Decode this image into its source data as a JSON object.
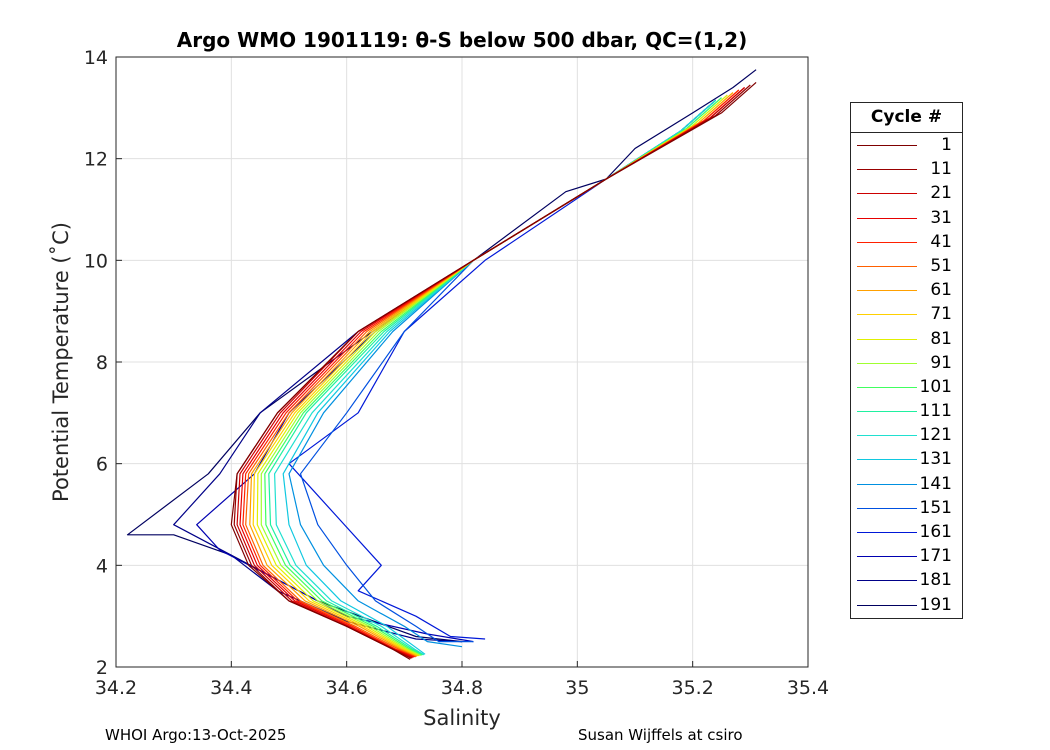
{
  "chart_data": {
    "type": "line",
    "title": "Argo WMO 1901119: θ-S below 500 dbar,  QC=(1,2)",
    "xlabel": "Salinity",
    "ylabel": "Potential Temperature (˚C)",
    "xlim": [
      34.2,
      35.4
    ],
    "ylim": [
      2,
      14
    ],
    "xticks": [
      "34.2",
      "34.4",
      "34.6",
      "34.8",
      "35",
      "35.2",
      "35.4"
    ],
    "yticks": [
      "2",
      "4",
      "6",
      "8",
      "10",
      "12",
      "14"
    ],
    "grid": true,
    "legend_title": "Cycle #",
    "legend_position": "right-outside",
    "series": [
      {
        "name": "1",
        "color": "#7f0000",
        "S": [
          35.31,
          35.25,
          35.05,
          34.82,
          34.62,
          34.48,
          34.41,
          34.4,
          34.43,
          34.5,
          34.6,
          34.68,
          34.71
        ],
        "T": [
          13.5,
          12.9,
          11.6,
          10.0,
          8.6,
          7.0,
          5.8,
          4.8,
          4.0,
          3.3,
          2.8,
          2.35,
          2.15
        ]
      },
      {
        "name": "11",
        "color": "#990000",
        "S": [
          35.3,
          35.24,
          35.05,
          34.82,
          34.62,
          34.48,
          34.41,
          34.405,
          34.435,
          34.5,
          34.6,
          34.68,
          34.712
        ],
        "T": [
          13.45,
          12.85,
          11.6,
          10.0,
          8.6,
          7.0,
          5.8,
          4.8,
          4.0,
          3.3,
          2.8,
          2.35,
          2.17
        ]
      },
      {
        "name": "21",
        "color": "#cc0000",
        "S": [
          35.29,
          35.23,
          35.05,
          34.82,
          34.62,
          34.485,
          34.415,
          34.41,
          34.44,
          34.505,
          34.6,
          34.68,
          34.714
        ],
        "T": [
          13.4,
          12.8,
          11.6,
          10.0,
          8.6,
          7.0,
          5.8,
          4.8,
          4.0,
          3.3,
          2.8,
          2.35,
          2.18
        ]
      },
      {
        "name": "31",
        "color": "#e60000",
        "S": [
          35.29,
          35.23,
          35.05,
          34.82,
          34.625,
          34.49,
          34.42,
          34.415,
          34.445,
          34.51,
          34.605,
          34.682,
          34.716
        ],
        "T": [
          13.4,
          12.8,
          11.6,
          10.0,
          8.6,
          7.0,
          5.8,
          4.8,
          4.0,
          3.3,
          2.8,
          2.35,
          2.19
        ]
      },
      {
        "name": "41",
        "color": "#ff2000",
        "S": [
          35.28,
          35.22,
          35.05,
          34.82,
          34.63,
          34.495,
          34.425,
          34.42,
          34.45,
          34.515,
          34.61,
          34.685,
          34.718
        ],
        "T": [
          13.35,
          12.75,
          11.6,
          10.0,
          8.6,
          7.0,
          5.8,
          4.8,
          4.0,
          3.3,
          2.8,
          2.35,
          2.2
        ]
      },
      {
        "name": "51",
        "color": "#ff6000",
        "S": [
          35.28,
          35.22,
          35.05,
          34.82,
          34.635,
          34.5,
          34.43,
          34.425,
          34.455,
          34.52,
          34.615,
          34.69,
          34.72
        ],
        "T": [
          13.35,
          12.75,
          11.6,
          10.0,
          8.6,
          7.0,
          5.8,
          4.8,
          4.0,
          3.3,
          2.8,
          2.35,
          2.2
        ]
      },
      {
        "name": "61",
        "color": "#ffa000",
        "S": [
          35.27,
          35.21,
          35.05,
          34.82,
          34.64,
          34.505,
          34.435,
          34.432,
          34.462,
          34.528,
          34.622,
          34.694,
          34.722
        ],
        "T": [
          13.3,
          12.7,
          11.6,
          10.0,
          8.6,
          7.0,
          5.8,
          4.8,
          4.0,
          3.3,
          2.8,
          2.35,
          2.21
        ]
      },
      {
        "name": "71",
        "color": "#ffd000",
        "S": [
          35.27,
          35.21,
          35.05,
          34.82,
          34.645,
          34.51,
          34.44,
          34.438,
          34.47,
          34.535,
          34.628,
          34.698,
          34.724
        ],
        "T": [
          13.3,
          12.7,
          11.6,
          10.0,
          8.6,
          7.0,
          5.8,
          4.8,
          4.0,
          3.3,
          2.8,
          2.35,
          2.22
        ]
      },
      {
        "name": "81",
        "color": "#e0f000",
        "S": [
          35.26,
          35.2,
          35.05,
          34.82,
          34.65,
          34.515,
          34.446,
          34.445,
          34.478,
          34.542,
          34.634,
          34.702,
          34.726
        ],
        "T": [
          13.25,
          12.65,
          11.6,
          10.0,
          8.6,
          7.0,
          5.8,
          4.8,
          4.0,
          3.3,
          2.8,
          2.35,
          2.22
        ]
      },
      {
        "name": "91",
        "color": "#a0ff30",
        "S": [
          35.26,
          35.2,
          35.05,
          34.82,
          34.655,
          34.52,
          34.452,
          34.452,
          34.486,
          34.55,
          34.64,
          34.706,
          34.728
        ],
        "T": [
          13.25,
          12.65,
          11.6,
          10.0,
          8.6,
          7.0,
          5.8,
          4.8,
          4.0,
          3.3,
          2.8,
          2.35,
          2.23
        ]
      },
      {
        "name": "101",
        "color": "#40ff60",
        "S": [
          35.25,
          35.19,
          35.05,
          34.82,
          34.66,
          34.525,
          34.458,
          34.46,
          34.494,
          34.557,
          34.646,
          34.71,
          34.73
        ],
        "T": [
          13.2,
          12.6,
          11.6,
          10.0,
          8.6,
          7.0,
          5.8,
          4.8,
          4.0,
          3.3,
          2.8,
          2.35,
          2.23
        ]
      },
      {
        "name": "111",
        "color": "#20f0a0",
        "S": [
          35.25,
          35.19,
          35.05,
          34.82,
          34.665,
          34.53,
          34.465,
          34.468,
          34.502,
          34.565,
          34.652,
          34.714,
          34.732
        ],
        "T": [
          13.2,
          12.6,
          11.6,
          10.0,
          8.6,
          7.0,
          5.8,
          4.8,
          4.0,
          3.3,
          2.8,
          2.35,
          2.24
        ]
      },
      {
        "name": "121",
        "color": "#20e0d0",
        "S": [
          35.24,
          35.18,
          35.05,
          34.82,
          34.67,
          34.54,
          34.475,
          34.478,
          34.512,
          34.574,
          34.66,
          34.718,
          34.734
        ],
        "T": [
          13.15,
          12.55,
          11.6,
          10.0,
          8.6,
          7.0,
          5.8,
          4.8,
          4.0,
          3.3,
          2.8,
          2.35,
          2.24
        ]
      },
      {
        "name": "131",
        "color": "#10c8e0",
        "S": [
          35.24,
          35.18,
          35.05,
          34.82,
          34.675,
          34.55,
          34.49,
          34.5,
          34.53,
          34.59,
          34.67,
          34.724,
          34.736
        ],
        "T": [
          13.15,
          12.55,
          11.6,
          10.0,
          8.6,
          7.0,
          5.8,
          4.8,
          4.0,
          3.3,
          2.8,
          2.35,
          2.25
        ]
      },
      {
        "name": "141",
        "color": "#0090e0",
        "S": [
          35.24,
          35.18,
          35.05,
          34.82,
          34.68,
          34.56,
          34.5,
          34.52,
          34.56,
          34.62,
          34.7,
          34.74,
          34.8
        ],
        "T": [
          13.15,
          12.55,
          11.6,
          10.0,
          8.6,
          7.0,
          5.8,
          4.8,
          4.0,
          3.3,
          2.8,
          2.5,
          2.4
        ]
      },
      {
        "name": "151",
        "color": "#0050e0",
        "S": [
          35.24,
          35.18,
          35.05,
          34.82,
          34.7,
          34.6,
          34.52,
          34.55,
          34.6,
          34.65,
          34.72,
          34.76,
          34.82
        ],
        "T": [
          13.15,
          12.55,
          11.6,
          10.0,
          8.6,
          7.0,
          5.8,
          4.8,
          4.0,
          3.3,
          2.8,
          2.5,
          2.5
        ]
      },
      {
        "name": "161",
        "color": "#0018d8",
        "S": [
          35.24,
          35.18,
          35.05,
          34.84,
          34.7,
          34.62,
          34.5,
          34.58,
          34.66,
          34.62,
          34.72,
          34.78,
          34.84
        ],
        "T": [
          13.15,
          12.55,
          11.6,
          10.0,
          8.6,
          7.0,
          6.0,
          5.0,
          4.0,
          3.5,
          3.0,
          2.6,
          2.55
        ]
      },
      {
        "name": "171",
        "color": "#0000b0",
        "S": [
          35.24,
          35.18,
          35.05,
          34.82,
          34.65,
          34.5,
          34.44,
          34.34,
          34.38,
          34.5,
          34.6,
          34.74,
          34.82
        ],
        "T": [
          13.15,
          12.55,
          11.6,
          10.0,
          8.6,
          7.0,
          5.8,
          4.8,
          4.3,
          3.6,
          3.0,
          2.65,
          2.5
        ]
      },
      {
        "name": "181",
        "color": "#000088",
        "S": [
          35.24,
          35.18,
          35.05,
          34.82,
          34.62,
          34.45,
          34.38,
          34.3,
          34.4,
          34.48,
          34.6,
          34.72,
          34.8
        ],
        "T": [
          13.15,
          12.55,
          11.6,
          10.0,
          8.6,
          7.0,
          5.8,
          4.8,
          4.2,
          3.5,
          2.9,
          2.55,
          2.5
        ]
      },
      {
        "name": "191",
        "color": "#000060",
        "S": [
          35.31,
          35.27,
          35.2,
          35.1,
          35.05,
          34.98,
          34.82,
          34.62,
          34.45,
          34.36,
          34.22,
          34.3,
          34.4,
          34.55,
          34.72,
          34.8
        ],
        "T": [
          13.75,
          13.4,
          12.9,
          12.2,
          11.6,
          11.35,
          10.0,
          8.4,
          7.0,
          5.8,
          4.6,
          4.6,
          4.2,
          3.3,
          2.6,
          2.5
        ]
      }
    ]
  },
  "footer": {
    "left": "WHOI Argo:13-Oct-2025",
    "right": "Susan Wijffels at csiro"
  }
}
